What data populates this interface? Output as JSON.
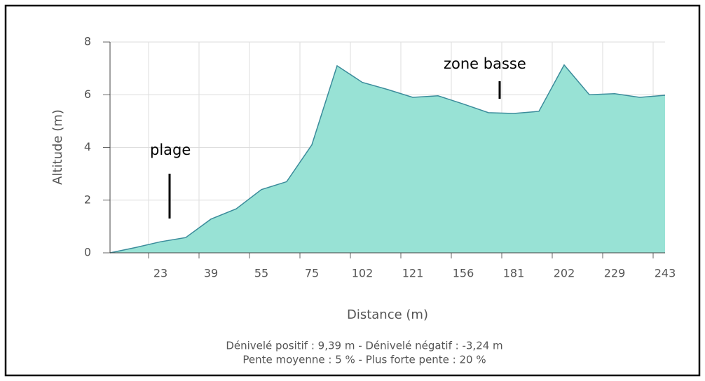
{
  "chart_data": {
    "type": "area",
    "x_label": "Distance (m)",
    "y_label": "Altitude (m)",
    "categories": [
      null,
      null,
      "23",
      null,
      "39",
      null,
      "55",
      null,
      "75",
      null,
      "102",
      null,
      "121",
      null,
      "156",
      null,
      "181",
      null,
      "202",
      null,
      "229",
      null,
      "243"
    ],
    "series": [
      {
        "name": "Altitude",
        "color": "#98e2d5",
        "values": [
          0,
          0.2,
          0.42,
          0.58,
          1.28,
          1.67,
          2.4,
          2.7,
          4.1,
          7.1,
          6.47,
          6.2,
          5.9,
          5.96,
          5.65,
          5.32,
          5.29,
          5.37,
          7.13,
          6.0,
          6.04,
          5.9,
          5.98
        ]
      }
    ],
    "ylim": [
      0,
      8
    ],
    "yticks": [
      0,
      2,
      4,
      6,
      8
    ],
    "grid": true,
    "annotations": [
      "plage",
      "zone basse"
    ],
    "footer": [
      "Dénivelé positif : 9,39 m - Dénivelé négatif : -3,24 m",
      "Pente moyenne : 5 % - Plus forte pente : 20 %"
    ]
  }
}
